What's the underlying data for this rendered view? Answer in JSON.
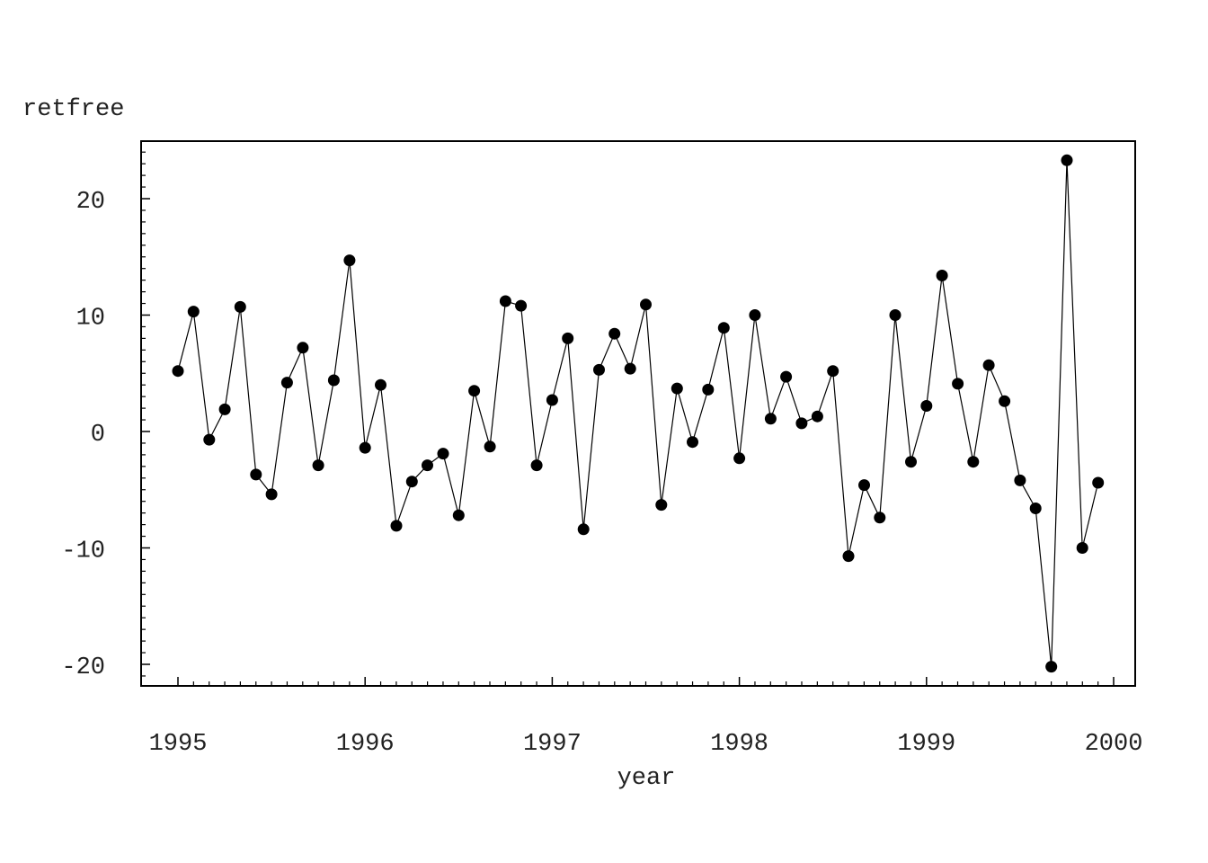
{
  "chart_data": {
    "type": "line",
    "title": "",
    "xlabel": "year",
    "ylabel": "retfree",
    "xlim": [
      1994.8,
      2000.1
    ],
    "ylim": [
      -22.0,
      25.0
    ],
    "x_ticks": [
      1995,
      1996,
      1997,
      1998,
      1999,
      2000
    ],
    "x_tick_labels": [
      "1995",
      "1996",
      "1997",
      "1998",
      "1999",
      "2000"
    ],
    "y_ticks": [
      20,
      10,
      0,
      -10,
      -20
    ],
    "y_tick_labels": [
      "20",
      "10",
      "0",
      "-10",
      "-20"
    ],
    "grid": false,
    "markers": "filled-circle",
    "series": [
      {
        "x": [
          1995.0,
          1995.083,
          1995.167,
          1995.25,
          1995.333,
          1995.417,
          1995.5,
          1995.583,
          1995.667,
          1995.75,
          1995.833,
          1995.917,
          1996.0,
          1996.083,
          1996.167,
          1996.25,
          1996.333,
          1996.417,
          1996.5,
          1996.583,
          1996.667,
          1996.75,
          1996.833,
          1996.917,
          1997.0,
          1997.083,
          1997.167,
          1997.25,
          1997.333,
          1997.417,
          1997.5,
          1997.583,
          1997.667,
          1997.75,
          1997.833,
          1997.917,
          1998.0,
          1998.083,
          1998.167,
          1998.25,
          1998.333,
          1998.417,
          1998.5,
          1998.583,
          1998.667,
          1998.75,
          1998.833,
          1998.917,
          1999.0,
          1999.083,
          1999.167,
          1999.25,
          1999.333,
          1999.417,
          1999.5,
          1999.583,
          1999.667,
          1999.75,
          1999.833,
          1999.917
        ],
        "values": [
          5.2,
          10.3,
          -0.7,
          1.9,
          10.7,
          -3.7,
          -5.4,
          4.2,
          7.2,
          -2.9,
          4.4,
          14.7,
          -1.4,
          4.0,
          -8.1,
          -4.3,
          -2.9,
          -1.9,
          -7.2,
          3.5,
          -1.3,
          11.2,
          10.8,
          -2.9,
          2.7,
          8.0,
          -8.4,
          5.3,
          8.4,
          5.4,
          10.9,
          -6.3,
          3.7,
          -0.9,
          3.6,
          8.9,
          -2.3,
          10.0,
          1.1,
          4.7,
          0.7,
          1.3,
          5.2,
          -10.7,
          -4.6,
          -7.4,
          10.0,
          -2.6,
          2.2,
          13.4,
          4.1,
          -2.6,
          5.7,
          2.6,
          -4.2,
          -6.6,
          -20.2,
          23.3,
          -10.0,
          -4.4
        ]
      }
    ]
  }
}
